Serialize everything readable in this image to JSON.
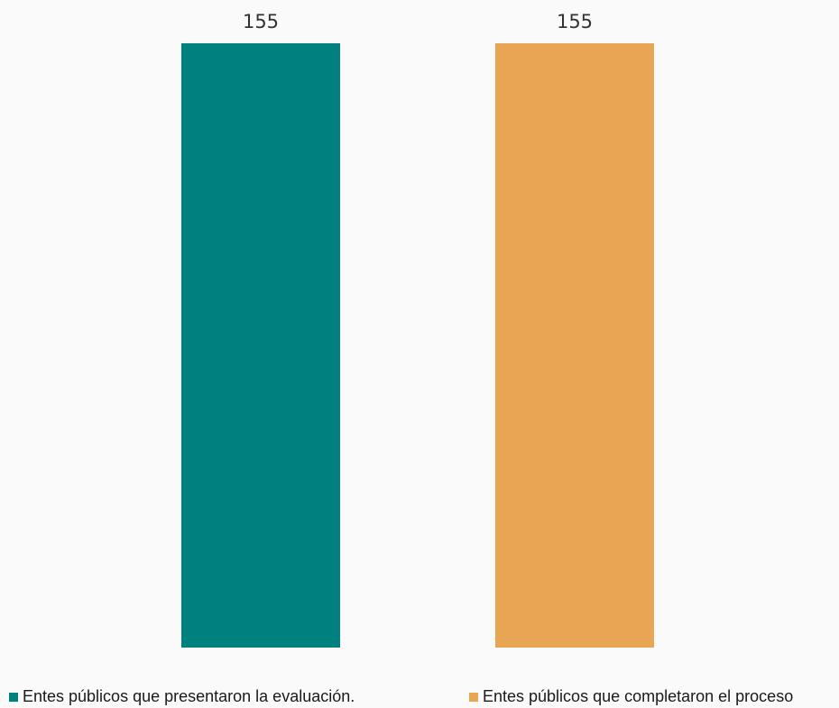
{
  "chart_data": {
    "type": "bar",
    "categories": [
      "Entes públicos que presentaron la evaluación.",
      "Entes públicos que completaron el proceso"
    ],
    "values": [
      155,
      155
    ],
    "colors": [
      "#00807f",
      "#e8a553"
    ],
    "legend": {
      "position": "bottom",
      "entries": [
        "Entes públicos que presentaron la evaluación.",
        "Entes públicos que completaron el proceso"
      ]
    },
    "data_labels": [
      "155",
      "155"
    ],
    "ylim": [
      0,
      155
    ],
    "grid": false
  }
}
